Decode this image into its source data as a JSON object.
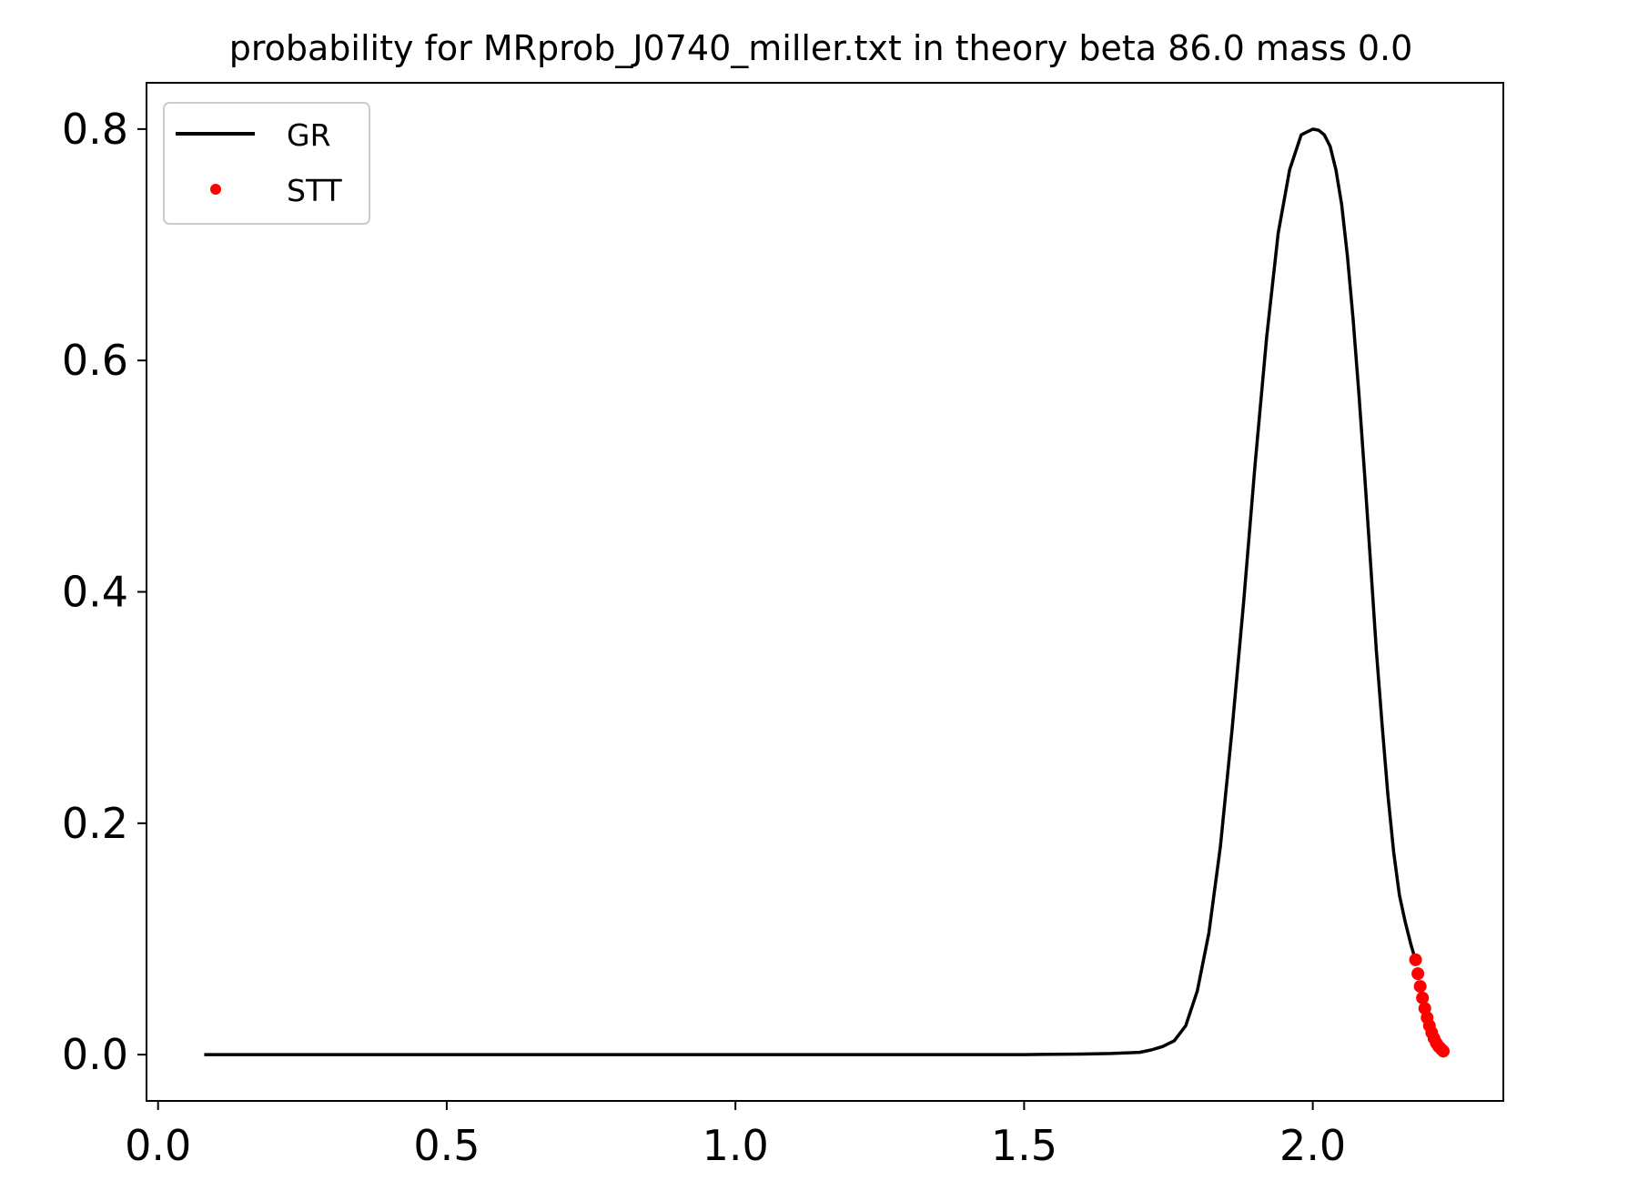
{
  "chart_data": {
    "type": "line",
    "title": "probability for MRprob_J0740_miller.txt in theory beta 86.0 mass 0.0",
    "xlabel": "",
    "ylabel": "",
    "xlim": [
      -0.02,
      2.33
    ],
    "ylim": [
      -0.04,
      0.84
    ],
    "grid": false,
    "legend_position": "top-left",
    "x_ticks": [
      0.0,
      0.5,
      1.0,
      1.5,
      2.0
    ],
    "x_tick_labels": [
      "0.0",
      "0.5",
      "1.0",
      "1.5",
      "2.0"
    ],
    "y_ticks": [
      0.0,
      0.2,
      0.4,
      0.6,
      0.8
    ],
    "y_tick_labels": [
      "0.0",
      "0.2",
      "0.4",
      "0.6",
      "0.8"
    ],
    "series": [
      {
        "name": "GR",
        "style": "line",
        "color": "#000000",
        "x": [
          0.08,
          0.5,
          1.0,
          1.5,
          1.6,
          1.65,
          1.7,
          1.72,
          1.74,
          1.76,
          1.78,
          1.8,
          1.82,
          1.84,
          1.86,
          1.88,
          1.9,
          1.92,
          1.94,
          1.96,
          1.98,
          2.0,
          2.01,
          2.02,
          2.03,
          2.04,
          2.05,
          2.06,
          2.07,
          2.08,
          2.09,
          2.1,
          2.11,
          2.12,
          2.13,
          2.14,
          2.15,
          2.16,
          2.17,
          2.18
        ],
        "y": [
          0.0,
          0.0,
          0.0,
          0.0,
          0.0005,
          0.001,
          0.002,
          0.004,
          0.007,
          0.012,
          0.025,
          0.055,
          0.105,
          0.18,
          0.28,
          0.39,
          0.51,
          0.62,
          0.71,
          0.765,
          0.795,
          0.8,
          0.799,
          0.795,
          0.785,
          0.765,
          0.735,
          0.69,
          0.635,
          0.57,
          0.5,
          0.425,
          0.35,
          0.285,
          0.225,
          0.175,
          0.138,
          0.115,
          0.095,
          0.078
        ]
      },
      {
        "name": "STT",
        "style": "points",
        "color": "#ff0000",
        "x": [
          2.178,
          2.182,
          2.186,
          2.19,
          2.194,
          2.198,
          2.202,
          2.206,
          2.21,
          2.214,
          2.218,
          2.222,
          2.226
        ],
        "y": [
          0.082,
          0.07,
          0.059,
          0.049,
          0.04,
          0.032,
          0.025,
          0.019,
          0.014,
          0.01,
          0.007,
          0.005,
          0.003
        ]
      }
    ]
  }
}
